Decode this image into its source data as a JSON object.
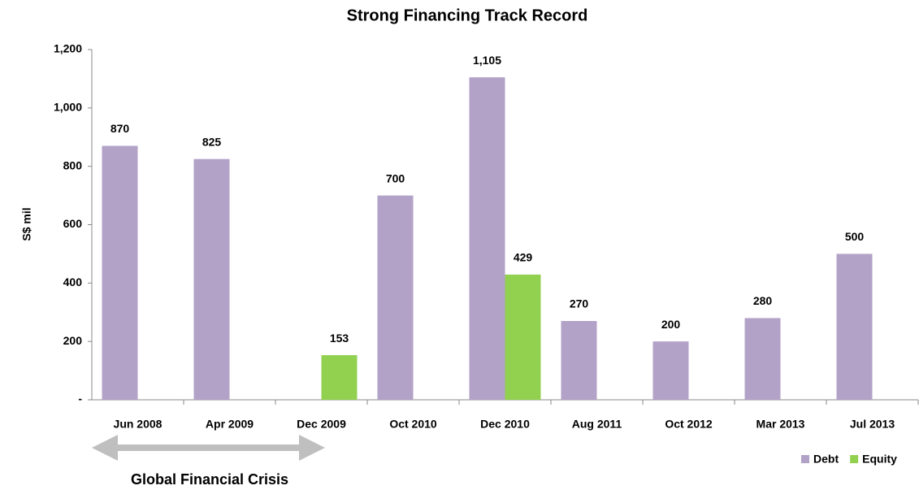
{
  "chart_data": {
    "type": "bar",
    "title": "Strong Financing Track Record",
    "y_label": "S$ mil",
    "categories": [
      "Jun 2008",
      "Apr 2009",
      "Dec 2009",
      "Oct 2010",
      "Dec 2010",
      "Aug 2011",
      "Oct 2012",
      "Mar 2013",
      "Jul 2013"
    ],
    "series": [
      {
        "name": "Debt",
        "color": "#b3a2c7",
        "values": [
          870,
          825,
          null,
          700,
          1105,
          270,
          200,
          280,
          500
        ],
        "value_labels": [
          "870",
          "825",
          null,
          "700",
          "1,105",
          "270",
          "200",
          "280",
          "500"
        ]
      },
      {
        "name": "Equity",
        "color": "#92d050",
        "values": [
          null,
          null,
          153,
          null,
          429,
          null,
          null,
          null,
          null
        ]
      }
    ],
    "ylim": [
      0,
      1200
    ],
    "yticks": [
      {
        "value": 0,
        "label": "-"
      },
      200,
      400,
      600,
      800,
      {
        "value": 1000,
        "label": "1,000"
      },
      {
        "value": 1200,
        "label": "1,200"
      }
    ],
    "legend": "bottom-right",
    "annotation": "Global Financial Crisis"
  }
}
